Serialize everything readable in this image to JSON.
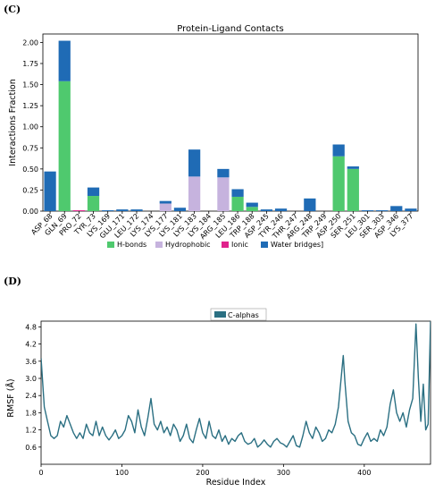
{
  "chart_data": [
    {
      "panel_label": "(C)",
      "type": "bar",
      "title": "Protein-Ligand Contacts",
      "xlabel": "",
      "ylabel": "Interactions Fraction",
      "ylim": [
        0,
        2.1
      ],
      "yticks": [
        "0.00",
        "0.25",
        "0.50",
        "0.75",
        "1.00",
        "1.25",
        "1.50",
        "1.75",
        "2.00"
      ],
      "stacked": true,
      "categories": [
        "ASP_68",
        "GLN_69",
        "PRO_72",
        "TYR_73",
        "LYS_169",
        "GLU_171",
        "LEU_172",
        "LYS_174",
        "LYS_177",
        "LYS_181",
        "LYS_183",
        "LYS_184",
        "ARG_185",
        "LEU_186",
        "TRP_188",
        "ASP_245",
        "TYR_246",
        "THR_247",
        "ARG_248",
        "TRP_249",
        "ASP_250",
        "SER_251",
        "LEU_301",
        "SER_303",
        "ASP_346",
        "LYS_377"
      ],
      "series": [
        {
          "name": "H-bonds",
          "color": "#4fc96e",
          "values": [
            0,
            1.54,
            0,
            0.18,
            0,
            0,
            0,
            0,
            0,
            0,
            0,
            0,
            0,
            0.17,
            0.05,
            0,
            0,
            0,
            0,
            0,
            0.65,
            0.5,
            0,
            0,
            0,
            0
          ]
        },
        {
          "name": "Hydrophobic",
          "color": "#c6b3de",
          "values": [
            0,
            0,
            0,
            0,
            0,
            0,
            0,
            0,
            0.09,
            0,
            0.41,
            0,
            0.4,
            0,
            0,
            0,
            0,
            0,
            0,
            0,
            0,
            0,
            0,
            0,
            0,
            0
          ]
        },
        {
          "name": "Ionic",
          "color": "#e0228c",
          "values": [
            0,
            0,
            0.01,
            0,
            0,
            0,
            0,
            0,
            0,
            0,
            0,
            0,
            0,
            0,
            0,
            0,
            0,
            0,
            0,
            0,
            0,
            0,
            0,
            0,
            0,
            0
          ]
        },
        {
          "name": "Water bridges",
          "color": "#1f6bb5",
          "values": [
            0.47,
            0.48,
            0,
            0.1,
            0.01,
            0.02,
            0.02,
            0,
            0.03,
            0.04,
            0.32,
            0,
            0.1,
            0.09,
            0.05,
            0.02,
            0.03,
            0,
            0.15,
            0,
            0.14,
            0.03,
            0.01,
            0.01,
            0.06,
            0.03
          ]
        }
      ],
      "legend_suffix": "]",
      "legend_position": "bottom"
    },
    {
      "panel_label": "(D)",
      "type": "line",
      "title": "",
      "xlabel": "Residue Index",
      "ylabel": "RMSF (Å)",
      "xlim": [
        0,
        482
      ],
      "ylim": [
        0,
        5.0
      ],
      "xticks": [
        "0",
        "100",
        "200",
        "300",
        "400"
      ],
      "yticks": [
        "0.6",
        "1.2",
        "1.8",
        "2.4",
        "3.0",
        "3.6",
        "4.2",
        "4.8"
      ],
      "series": [
        {
          "name": "C-alphas",
          "color": "#2a6f82",
          "points": [
            [
              0,
              3.7
            ],
            [
              4,
              2.0
            ],
            [
              8,
              1.5
            ],
            [
              12,
              1.0
            ],
            [
              16,
              0.9
            ],
            [
              20,
              1.0
            ],
            [
              24,
              1.5
            ],
            [
              28,
              1.3
            ],
            [
              32,
              1.7
            ],
            [
              36,
              1.4
            ],
            [
              40,
              1.1
            ],
            [
              44,
              0.9
            ],
            [
              48,
              1.1
            ],
            [
              52,
              0.9
            ],
            [
              56,
              1.4
            ],
            [
              60,
              1.1
            ],
            [
              64,
              1.0
            ],
            [
              68,
              1.5
            ],
            [
              72,
              1.0
            ],
            [
              76,
              1.3
            ],
            [
              80,
              1.0
            ],
            [
              84,
              0.85
            ],
            [
              88,
              1.0
            ],
            [
              92,
              1.2
            ],
            [
              96,
              0.9
            ],
            [
              100,
              1.0
            ],
            [
              104,
              1.2
            ],
            [
              108,
              1.7
            ],
            [
              112,
              1.5
            ],
            [
              116,
              1.1
            ],
            [
              120,
              1.9
            ],
            [
              124,
              1.3
            ],
            [
              128,
              1.0
            ],
            [
              132,
              1.6
            ],
            [
              136,
              2.3
            ],
            [
              140,
              1.4
            ],
            [
              144,
              1.2
            ],
            [
              148,
              1.5
            ],
            [
              152,
              1.1
            ],
            [
              156,
              1.3
            ],
            [
              160,
              1.0
            ],
            [
              164,
              1.4
            ],
            [
              168,
              1.2
            ],
            [
              172,
              0.8
            ],
            [
              176,
              1.0
            ],
            [
              180,
              1.4
            ],
            [
              184,
              0.9
            ],
            [
              188,
              0.75
            ],
            [
              192,
              1.2
            ],
            [
              196,
              1.6
            ],
            [
              200,
              1.1
            ],
            [
              204,
              0.9
            ],
            [
              208,
              1.5
            ],
            [
              212,
              1.0
            ],
            [
              216,
              0.9
            ],
            [
              220,
              1.2
            ],
            [
              224,
              0.8
            ],
            [
              228,
              1.0
            ],
            [
              232,
              0.7
            ],
            [
              236,
              0.9
            ],
            [
              240,
              0.8
            ],
            [
              244,
              1.0
            ],
            [
              248,
              1.1
            ],
            [
              252,
              0.8
            ],
            [
              256,
              0.7
            ],
            [
              260,
              0.75
            ],
            [
              264,
              0.9
            ],
            [
              268,
              0.6
            ],
            [
              272,
              0.7
            ],
            [
              276,
              0.85
            ],
            [
              280,
              0.7
            ],
            [
              284,
              0.6
            ],
            [
              288,
              0.8
            ],
            [
              292,
              0.9
            ],
            [
              296,
              0.75
            ],
            [
              300,
              0.7
            ],
            [
              304,
              0.6
            ],
            [
              308,
              0.8
            ],
            [
              312,
              1.0
            ],
            [
              316,
              0.65
            ],
            [
              320,
              0.6
            ],
            [
              324,
              1.0
            ],
            [
              328,
              1.5
            ],
            [
              332,
              1.1
            ],
            [
              336,
              0.9
            ],
            [
              340,
              1.3
            ],
            [
              344,
              1.1
            ],
            [
              348,
              0.8
            ],
            [
              352,
              0.9
            ],
            [
              356,
              1.2
            ],
            [
              360,
              1.1
            ],
            [
              364,
              1.4
            ],
            [
              368,
              2.0
            ],
            [
              372,
              3.2
            ],
            [
              374,
              3.8
            ],
            [
              376,
              2.9
            ],
            [
              380,
              1.5
            ],
            [
              384,
              1.1
            ],
            [
              388,
              1.0
            ],
            [
              392,
              0.7
            ],
            [
              396,
              0.65
            ],
            [
              400,
              0.9
            ],
            [
              404,
              1.1
            ],
            [
              408,
              0.8
            ],
            [
              412,
              0.9
            ],
            [
              416,
              0.8
            ],
            [
              420,
              1.2
            ],
            [
              424,
              1.0
            ],
            [
              428,
              1.3
            ],
            [
              432,
              2.1
            ],
            [
              436,
              2.6
            ],
            [
              440,
              1.8
            ],
            [
              444,
              1.5
            ],
            [
              448,
              1.8
            ],
            [
              452,
              1.3
            ],
            [
              456,
              1.9
            ],
            [
              460,
              2.3
            ],
            [
              464,
              4.9
            ],
            [
              467,
              3.0
            ],
            [
              470,
              1.5
            ],
            [
              473,
              2.8
            ],
            [
              476,
              1.2
            ],
            [
              479,
              1.4
            ],
            [
              482,
              5.0
            ]
          ]
        }
      ],
      "legend_position": "top-center"
    }
  ]
}
